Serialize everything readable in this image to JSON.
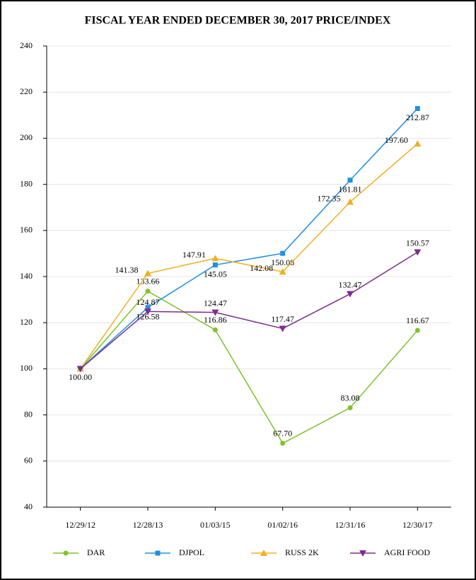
{
  "chart_data": {
    "type": "line",
    "title": "FISCAL YEAR ENDED DECEMBER 30, 2017 PRICE/INDEX",
    "categories": [
      "12/29/12",
      "12/28/13",
      "01/03/15",
      "01/02/16",
      "12/31/16",
      "12/30/17"
    ],
    "series": [
      {
        "name": "DAR",
        "color": "#7dc32a",
        "marker": "circle",
        "values": [
          100,
          133.66,
          116.86,
          67.7,
          83.08,
          116.67
        ],
        "value_labels": [
          "100.00",
          "133.66",
          "116.86",
          "67.70",
          "83.08",
          "116.67"
        ]
      },
      {
        "name": "DJPOL",
        "color": "#1e8fe1",
        "marker": "square",
        "values": [
          100,
          126.58,
          145.05,
          150.08,
          181.81,
          212.87
        ],
        "value_labels": [
          null,
          "126.58",
          "145.05",
          "150.08",
          "181.81",
          "212.87"
        ]
      },
      {
        "name": "RUSS 2K",
        "color": "#f0b020",
        "marker": "triangle-up",
        "values": [
          100,
          141.38,
          147.91,
          142.08,
          172.35,
          197.6
        ],
        "value_labels": [
          null,
          "141.38",
          "147.91",
          "142.08",
          "172.35",
          "197.60"
        ]
      },
      {
        "name": "AGRI FOOD",
        "color": "#7b2d8e",
        "marker": "triangle-down",
        "values": [
          100,
          124.87,
          124.47,
          117.47,
          132.47,
          150.57
        ],
        "value_labels": [
          null,
          "124.87",
          "124.47",
          "117.47",
          "132.47",
          "150.57"
        ]
      }
    ],
    "ylim": [
      40,
      240
    ],
    "yticks": [
      40,
      60,
      80,
      100,
      120,
      140,
      160,
      180,
      200,
      220,
      240
    ],
    "grid": true
  }
}
